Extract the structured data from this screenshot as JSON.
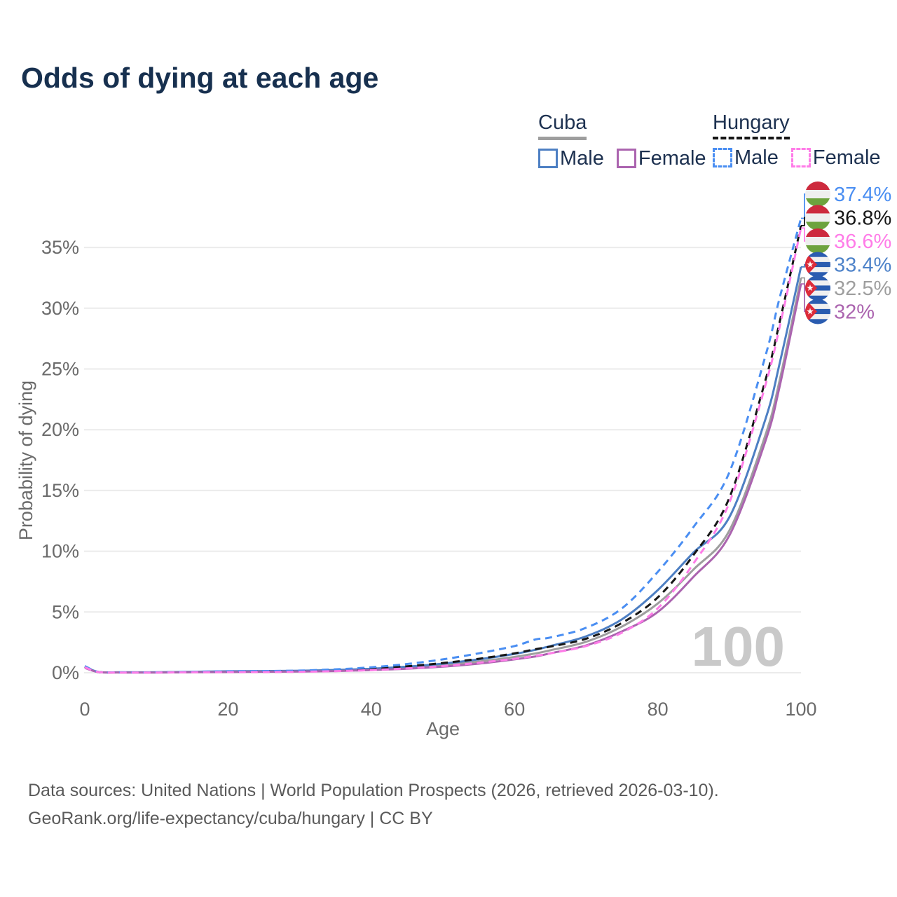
{
  "header": {
    "title": "Odds of dying at each age"
  },
  "legend": {
    "cuba": {
      "title": "Cuba",
      "male_label": "Male",
      "female_label": "Female"
    },
    "hungary": {
      "title": "Hungary",
      "male_label": "Male",
      "female_label": "Female"
    }
  },
  "chart_data": {
    "type": "line",
    "title": "Odds of dying at each age",
    "xlabel": "Age",
    "ylabel": "Probability of dying",
    "xlim": [
      0,
      100
    ],
    "ylim": [
      0,
      39
    ],
    "xticks": [
      0,
      20,
      40,
      60,
      80,
      100
    ],
    "yticks": [
      0,
      5,
      10,
      15,
      20,
      25,
      30,
      35
    ],
    "ytick_suffix": "%",
    "grid": "horizontal-only",
    "watermark": "100",
    "ages": [
      0,
      2,
      5,
      10,
      15,
      20,
      25,
      30,
      35,
      40,
      45,
      50,
      55,
      60,
      63,
      65,
      70,
      75,
      80,
      85,
      90,
      95,
      97,
      100
    ],
    "series": [
      {
        "id": "hungary-male",
        "country": "Hungary",
        "sex": "Male",
        "flag": "hungary",
        "dash": "dashed",
        "color": "#4a8ef2",
        "label_color": "#4a8ef2",
        "end_label": "37.4%",
        "values": [
          0.55,
          0.06,
          0.03,
          0.03,
          0.08,
          0.12,
          0.14,
          0.18,
          0.28,
          0.45,
          0.72,
          1.1,
          1.6,
          2.2,
          2.75,
          2.9,
          3.7,
          5.3,
          8.3,
          12.0,
          16.5,
          26.0,
          30.8,
          37.4
        ]
      },
      {
        "id": "hungary-total",
        "country": "Hungary",
        "sex": "Total",
        "flag": "hungary",
        "dash": "dashed",
        "color": "#161616",
        "label_color": "#161616",
        "end_label": "36.8%",
        "values": [
          0.5,
          0.05,
          0.03,
          0.03,
          0.06,
          0.09,
          0.11,
          0.14,
          0.21,
          0.34,
          0.53,
          0.8,
          1.15,
          1.6,
          1.95,
          2.15,
          2.8,
          4.1,
          6.2,
          9.7,
          14.4,
          24.0,
          28.8,
          36.8
        ]
      },
      {
        "id": "hungary-female",
        "country": "Hungary",
        "sex": "Female",
        "flag": "hungary",
        "dash": "dashed",
        "color": "#ff7ce8",
        "label_color": "#ff7ce8",
        "end_label": "36.6%",
        "values": [
          0.45,
          0.05,
          0.02,
          0.02,
          0.04,
          0.05,
          0.06,
          0.08,
          0.13,
          0.22,
          0.36,
          0.55,
          0.82,
          1.15,
          1.4,
          1.6,
          2.2,
          3.3,
          5.3,
          9.0,
          14.0,
          23.6,
          28.4,
          36.6
        ]
      },
      {
        "id": "cuba-male",
        "country": "Cuba",
        "sex": "Male",
        "flag": "cuba",
        "dash": "solid",
        "color": "#4d7fc3",
        "label_color": "#4d82c9",
        "end_label": "33.4%",
        "values": [
          0.5,
          0.05,
          0.04,
          0.04,
          0.08,
          0.12,
          0.14,
          0.17,
          0.23,
          0.33,
          0.5,
          0.75,
          1.1,
          1.55,
          1.9,
          2.2,
          3.0,
          4.4,
          6.8,
          9.9,
          12.8,
          20.8,
          25.4,
          33.4
        ]
      },
      {
        "id": "cuba-total",
        "country": "Cuba",
        "sex": "Total",
        "flag": "cuba",
        "dash": "solid",
        "color": "#9e9e9e",
        "label_color": "#9e9e9e",
        "end_label": "32.5%",
        "values": [
          0.45,
          0.05,
          0.03,
          0.03,
          0.06,
          0.09,
          0.11,
          0.14,
          0.19,
          0.28,
          0.42,
          0.63,
          0.92,
          1.3,
          1.6,
          1.85,
          2.55,
          3.8,
          5.7,
          8.5,
          11.7,
          19.5,
          24.0,
          32.5
        ]
      },
      {
        "id": "cuba-female",
        "country": "Cuba",
        "sex": "Female",
        "flag": "cuba",
        "dash": "solid",
        "color": "#ab64af",
        "label_color": "#ab64af",
        "end_label": "32%",
        "values": [
          0.4,
          0.04,
          0.02,
          0.02,
          0.04,
          0.06,
          0.08,
          0.1,
          0.14,
          0.22,
          0.33,
          0.5,
          0.75,
          1.1,
          1.35,
          1.6,
          2.25,
          3.4,
          5.0,
          7.9,
          11.3,
          19.0,
          23.5,
          32.0
        ]
      }
    ],
    "flag_colors": {
      "hungary": {
        "red": "#cd2a3e",
        "white": "#efefef",
        "green": "#6da33e"
      },
      "cuba": {
        "blue": "#2a5cb0",
        "white": "#f0f0f0",
        "red": "#dd2c3a",
        "star": "#ffffff"
      }
    }
  },
  "footer": {
    "line1": "Data sources: United Nations | World Population Prospects (2026, retrieved 2026-03-10).",
    "line2": "GeoRank.org/life-expectancy/cuba/hungary | CC BY"
  }
}
